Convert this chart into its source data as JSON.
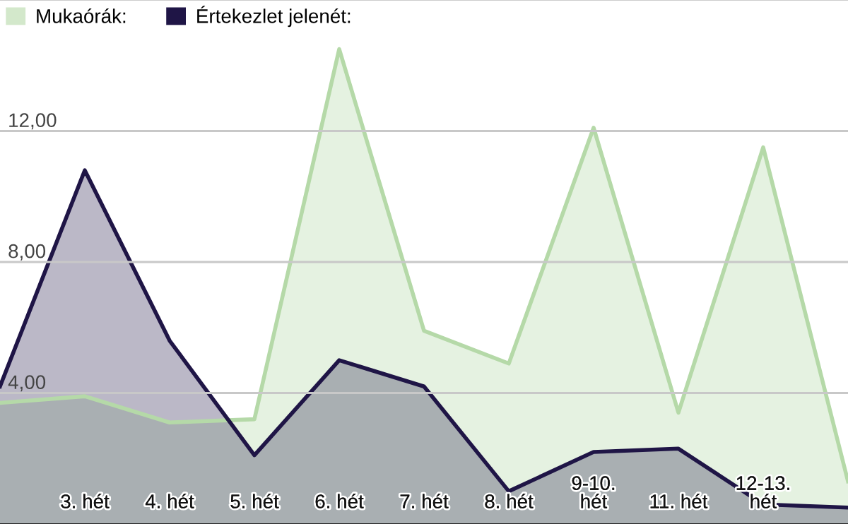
{
  "chart_data": {
    "type": "area",
    "categories": [
      null,
      "3. hét",
      "4. hét",
      "5. hét",
      "6. hét",
      "7. hét",
      "8. hét",
      "9-10.\nhét",
      "11. hét",
      "12-13.\nhét",
      null
    ],
    "series": [
      {
        "name": "Mukaórák:",
        "color": "#b5d9a8",
        "values": [
          3.7,
          3.9,
          3.1,
          3.2,
          14.5,
          5.9,
          4.9,
          12.1,
          3.4,
          11.5,
          1.3
        ]
      },
      {
        "name": "Értekezlet jelenét:",
        "color": "#1f1546",
        "values": [
          4.2,
          10.8,
          5.6,
          2.1,
          5.0,
          4.2,
          1.0,
          2.2,
          2.3,
          0.6,
          0.5
        ]
      }
    ],
    "ylim": [
      0,
      16
    ],
    "yticks": [
      {
        "value": 4,
        "label": "4,00"
      },
      {
        "value": 8,
        "label": "8,00"
      },
      {
        "value": 12,
        "label": "12,00"
      }
    ],
    "grid": "y",
    "legend": "top left",
    "marker": "none",
    "line_style": "solid"
  }
}
